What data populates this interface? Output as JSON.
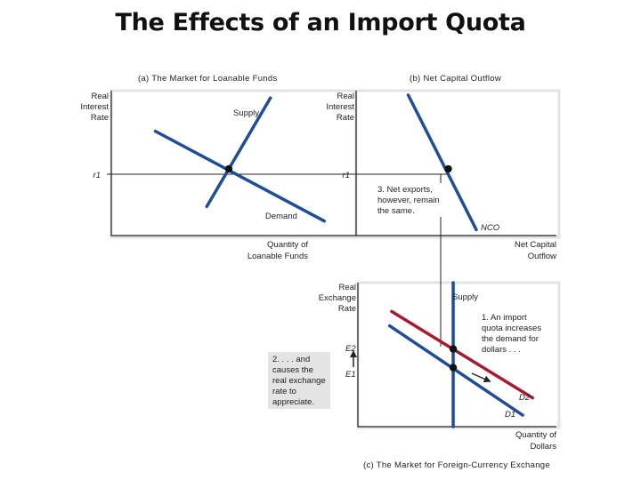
{
  "title": "The Effects of an Import Quota",
  "colors": {
    "blue": "#1f4e96",
    "red": "#a51c30",
    "axis": "#222222",
    "panel_shadow": "#e6e6e6"
  },
  "chart_data": [
    {
      "type": "line",
      "subtitle": "(a) The Market for Loanable Funds",
      "ylabel": [
        "Real",
        "Interest",
        "Rate"
      ],
      "xlabel": [
        "Quantity of",
        "Loanable Funds"
      ],
      "ytick": "r1",
      "series": [
        {
          "name": "Supply",
          "points": [
            [
              0.65,
              0.95
            ],
            [
              0.39,
              0.2
            ]
          ]
        },
        {
          "name": "Demand",
          "points": [
            [
              0.18,
              0.72
            ],
            [
              0.87,
              0.1
            ]
          ]
        }
      ],
      "equilibrium": [
        0.48,
        0.46
      ],
      "xlim": [
        0,
        1
      ],
      "ylim": [
        0,
        1
      ]
    },
    {
      "type": "line",
      "subtitle": "(b) Net Capital Outflow",
      "ylabel": [
        "Real",
        "Interest",
        "Rate"
      ],
      "xlabel": [
        "Net Capital",
        "Outflow"
      ],
      "ytick": "r1",
      "series": [
        {
          "name": "NCO",
          "points": [
            [
              0.26,
              0.97
            ],
            [
              0.6,
              0.04
            ]
          ]
        }
      ],
      "equilibrium": [
        0.46,
        0.46
      ],
      "annotation": [
        "3. Net exports,",
        "however, remain",
        "the same."
      ]
    },
    {
      "type": "line",
      "subtitle": "(c) The Market for Foreign-Currency Exchange",
      "ylabel": [
        "Real",
        "Exchange",
        "Rate"
      ],
      "xlabel": [
        "Quantity of",
        "Dollars"
      ],
      "yticks": [
        "E2",
        "E1"
      ],
      "series": [
        {
          "name": "Supply",
          "points": [
            [
              0.48,
              1.0
            ],
            [
              0.48,
              0.0
            ]
          ]
        },
        {
          "name": "D2",
          "points": [
            [
              0.17,
              0.8
            ],
            [
              0.88,
              0.2
            ]
          ]
        },
        {
          "name": "D1",
          "points": [
            [
              0.16,
              0.7
            ],
            [
              0.83,
              0.08
            ]
          ]
        }
      ],
      "equilibria": [
        [
          0.48,
          0.54
        ],
        [
          0.48,
          0.41
        ]
      ],
      "annotations": [
        [
          "1. An import",
          "quota increases",
          "the demand for",
          "dollars . . ."
        ],
        [
          "2. . . . and",
          "causes the",
          "real exchange",
          "rate to",
          "appreciate."
        ]
      ]
    }
  ]
}
